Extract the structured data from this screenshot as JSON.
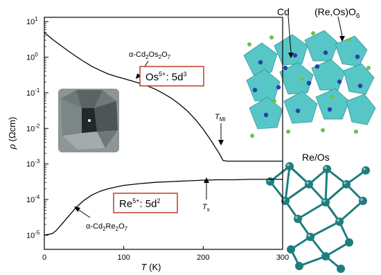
{
  "chart_data": {
    "type": "line",
    "xlabel": "T (K)",
    "ylabel": "ρ (Ωcm)",
    "xlim": [
      0,
      300
    ],
    "ylim_log10": [
      -5.4,
      1.12
    ],
    "yscale": "log",
    "x_ticks": [
      0,
      100,
      200,
      300
    ],
    "y_ticks": [
      {
        "base": "10",
        "exp": "1",
        "value": 10
      },
      {
        "base": "10",
        "exp": "0",
        "value": 1
      },
      {
        "base": "10",
        "exp": "-1",
        "value": 0.1
      },
      {
        "base": "10",
        "exp": "-2",
        "value": 0.01
      },
      {
        "base": "10",
        "exp": "-3",
        "value": 0.001
      },
      {
        "base": "10",
        "exp": "-4",
        "value": 0.0001
      },
      {
        "base": "10",
        "exp": "-5",
        "value": 1e-05
      }
    ],
    "series": [
      {
        "key": "os",
        "name_parts": [
          "α-Cd",
          "2",
          "Os",
          "2",
          "O",
          "7"
        ],
        "color": "#000000",
        "points": [
          [
            0,
            5.0
          ],
          [
            5,
            4.0
          ],
          [
            10,
            3.2
          ],
          [
            20,
            2.2
          ],
          [
            30,
            1.5
          ],
          [
            40,
            1.05
          ],
          [
            50,
            0.75
          ],
          [
            60,
            0.55
          ],
          [
            70,
            0.43
          ],
          [
            80,
            0.34
          ],
          [
            90,
            0.29
          ],
          [
            100,
            0.25
          ],
          [
            110,
            0.215
          ],
          [
            120,
            0.185
          ],
          [
            130,
            0.155
          ],
          [
            140,
            0.125
          ],
          [
            150,
            0.095
          ],
          [
            160,
            0.07
          ],
          [
            170,
            0.048
          ],
          [
            180,
            0.031
          ],
          [
            190,
            0.018
          ],
          [
            200,
            0.0095
          ],
          [
            210,
            0.0045
          ],
          [
            215,
            0.003
          ],
          [
            220,
            0.002
          ],
          [
            225,
            0.00125
          ],
          [
            230,
            0.0012
          ],
          [
            250,
            0.0012
          ],
          [
            270,
            0.0012
          ],
          [
            300,
            0.0012
          ]
        ]
      },
      {
        "key": "re",
        "name_parts": [
          "α-Cd",
          "2",
          "Re",
          "2",
          "O",
          "7"
        ],
        "color": "#000000",
        "points": [
          [
            0,
            1e-05
          ],
          [
            5,
            1.05e-05
          ],
          [
            10,
            1.1e-05
          ],
          [
            15,
            1.35e-05
          ],
          [
            20,
            1.8e-05
          ],
          [
            30,
            3.3e-05
          ],
          [
            40,
            6e-05
          ],
          [
            50,
            9.5e-05
          ],
          [
            60,
            0.000135
          ],
          [
            70,
            0.00017
          ],
          [
            80,
            0.0002
          ],
          [
            90,
            0.000225
          ],
          [
            100,
            0.00025
          ],
          [
            120,
            0.00028
          ],
          [
            140,
            0.000305
          ],
          [
            160,
            0.00032
          ],
          [
            180,
            0.000335
          ],
          [
            200,
            0.00035
          ],
          [
            220,
            0.00036
          ],
          [
            240,
            0.00036
          ],
          [
            260,
            0.00037
          ],
          [
            280,
            0.00037
          ],
          [
            300,
            0.00037
          ]
        ]
      }
    ],
    "annotations": {
      "os_config": {
        "ion": "Os",
        "charge": "5+",
        "config": ": 5d",
        "exp": "3",
        "border_color": "#c0392b"
      },
      "re_config": {
        "ion": "Re",
        "charge": "5+",
        "config": ": 5d",
        "exp": "2",
        "border_color": "#c0392b"
      },
      "t_mi": {
        "main": "T",
        "sub": "MI",
        "at_x": 225
      },
      "t_s": {
        "main": "T",
        "sub": "s",
        "at_x": 200
      }
    }
  },
  "structure": {
    "cd_label": "Cd",
    "octa_label_parts": [
      "(Re,Os)O",
      "6"
    ],
    "network_label": "Re/Os",
    "colors": {
      "octahedra": "#4fc3c3",
      "cd_atoms": "#2a3fb0",
      "o_atoms": "#6cc24a",
      "network": "#1f7d7d"
    }
  }
}
